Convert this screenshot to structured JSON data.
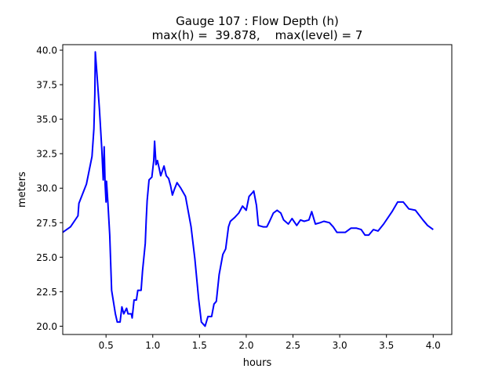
{
  "chart_data": {
    "type": "line",
    "title": "Gauge 107 : Flow Depth (h)",
    "subtitle": "max(h) =  39.878,    max(level) = 7",
    "xlabel": "hours",
    "ylabel": "meters",
    "xlim": [
      0.037,
      4.199
    ],
    "ylim": [
      19.4,
      40.4
    ],
    "xticks": [
      0.5,
      1.0,
      1.5,
      2.0,
      2.5,
      3.0,
      3.5,
      4.0
    ],
    "xtick_labels": [
      "0.5",
      "1.0",
      "1.5",
      "2.0",
      "2.5",
      "3.0",
      "3.5",
      "4.0"
    ],
    "yticks": [
      20.0,
      22.5,
      25.0,
      27.5,
      30.0,
      32.5,
      35.0,
      37.5,
      40.0
    ],
    "ytick_labels": [
      "20.0",
      "22.5",
      "25.0",
      "27.5",
      "30.0",
      "32.5",
      "35.0",
      "37.5",
      "40.0"
    ],
    "grid": false,
    "series": [
      {
        "color": "#0000ff",
        "x": [
          0.037,
          0.12,
          0.2,
          0.21,
          0.29,
          0.35,
          0.37,
          0.38,
          0.385,
          0.4,
          0.43,
          0.455,
          0.47,
          0.48,
          0.49,
          0.5,
          0.505,
          0.52,
          0.54,
          0.56,
          0.6,
          0.62,
          0.65,
          0.67,
          0.69,
          0.72,
          0.735,
          0.77,
          0.78,
          0.8,
          0.825,
          0.84,
          0.875,
          0.89,
          0.92,
          0.93,
          0.94,
          0.96,
          0.99,
          1.01,
          1.02,
          1.035,
          1.05,
          1.07,
          1.085,
          1.12,
          1.145,
          1.17,
          1.19,
          1.21,
          1.23,
          1.26,
          1.3,
          1.35,
          1.41,
          1.45,
          1.49,
          1.52,
          1.56,
          1.59,
          1.63,
          1.655,
          1.68,
          1.71,
          1.75,
          1.78,
          1.81,
          1.83,
          1.88,
          1.92,
          1.96,
          2.0,
          2.03,
          2.07,
          2.08,
          2.11,
          2.13,
          2.18,
          2.22,
          2.25,
          2.29,
          2.33,
          2.37,
          2.4,
          2.45,
          2.49,
          2.54,
          2.58,
          2.62,
          2.67,
          2.7,
          2.74,
          2.79,
          2.83,
          2.89,
          2.93,
          2.97,
          3.06,
          3.12,
          3.18,
          3.23,
          3.27,
          3.31,
          3.36,
          3.41,
          3.47,
          3.56,
          3.62,
          3.68,
          3.74,
          3.81,
          3.89,
          3.94,
          4.0
        ],
        "y": [
          26.8,
          27.2,
          28.0,
          28.9,
          30.3,
          32.3,
          34.3,
          36.8,
          39.878,
          38.5,
          35.7,
          32.8,
          30.6,
          33.0,
          30.3,
          29.0,
          30.5,
          28.9,
          26.6,
          22.6,
          20.9,
          20.3,
          20.3,
          21.4,
          20.9,
          21.3,
          20.9,
          20.9,
          20.6,
          21.9,
          21.9,
          22.6,
          22.6,
          24.0,
          26.0,
          27.7,
          29.1,
          30.6,
          30.8,
          32.0,
          33.4,
          31.7,
          32.0,
          31.4,
          30.9,
          31.6,
          30.9,
          30.7,
          30.2,
          29.5,
          29.9,
          30.4,
          30.0,
          29.4,
          27.2,
          24.9,
          22.0,
          20.3,
          20.0,
          20.7,
          20.7,
          21.6,
          21.8,
          23.75,
          25.2,
          25.6,
          27.2,
          27.6,
          27.9,
          28.2,
          28.7,
          28.4,
          29.4,
          29.7,
          29.8,
          28.75,
          27.3,
          27.2,
          27.2,
          27.6,
          28.2,
          28.4,
          28.2,
          27.7,
          27.4,
          27.8,
          27.3,
          27.7,
          27.6,
          27.7,
          28.3,
          27.4,
          27.5,
          27.6,
          27.5,
          27.2,
          26.8,
          26.8,
          27.1,
          27.1,
          27.0,
          26.6,
          26.6,
          27.0,
          26.9,
          27.4,
          28.3,
          29.0,
          29.0,
          28.5,
          28.4,
          27.7,
          27.3,
          27.0
        ]
      }
    ]
  }
}
